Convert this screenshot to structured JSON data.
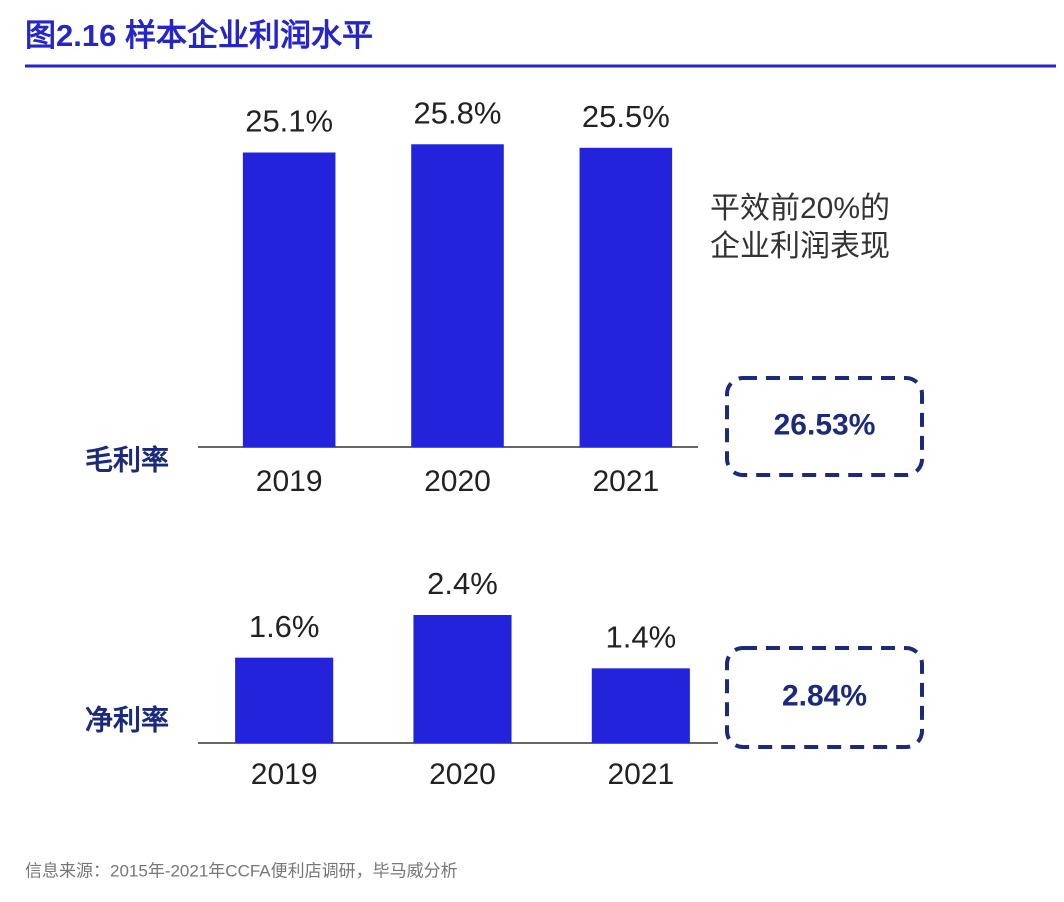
{
  "title": "图2.16 样本企业利润水平",
  "source": "信息来源：2015年-2021年CCFA便利店调研，毕马威分析",
  "chart_data": [
    {
      "type": "bar",
      "title": "毛利率",
      "categories": [
        "2019",
        "2020",
        "2021"
      ],
      "values": [
        25.1,
        25.8,
        25.5
      ],
      "value_labels": [
        "25.1%",
        "25.8%",
        "25.5%"
      ],
      "color": "#2323dc",
      "ylim": [
        0,
        30
      ],
      "annotation": [
        "平效前20%的",
        "企业利润表现"
      ],
      "callout": "26.53%"
    },
    {
      "type": "bar",
      "title": "净利率",
      "categories": [
        "2019",
        "2020",
        "2021"
      ],
      "values": [
        1.6,
        2.4,
        1.4
      ],
      "value_labels": [
        "1.6%",
        "2.4%",
        "1.4%"
      ],
      "color": "#2323dc",
      "ylim": [
        0,
        3
      ],
      "callout": "2.84%"
    }
  ]
}
